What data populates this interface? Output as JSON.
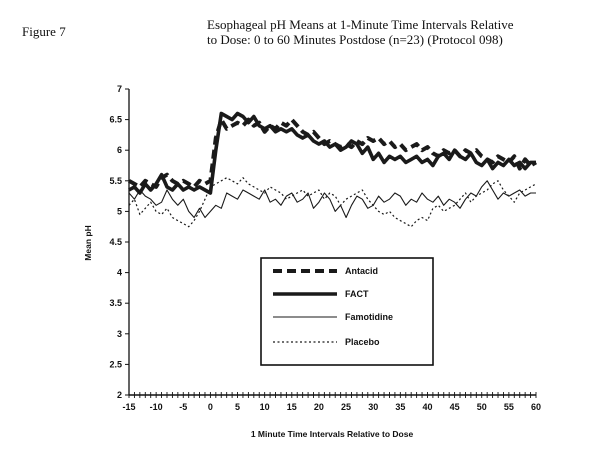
{
  "figure_label": "Figure 7",
  "title_line1": "Esophageal pH Means at 1-Minute Time Intervals Relative",
  "title_line2": "to Dose:  0 to 60 Minutes Postdose (n=23) (Protocol 098)",
  "chart_data": {
    "type": "line",
    "title": "Esophageal pH Means at 1-Minute Time Intervals Relative to Dose: 0 to 60 Minutes Postdose (n=23) (Protocol 098)",
    "xlabel": "1 Minute Time Intervals Relative to Dose",
    "ylabel": "Mean pH",
    "xlim": [
      -15,
      60
    ],
    "ylim": [
      2,
      7
    ],
    "xticks": [
      -15,
      -10,
      -5,
      0,
      5,
      10,
      15,
      20,
      25,
      30,
      35,
      40,
      45,
      50,
      55,
      60
    ],
    "xtick_labels": [
      "-15",
      "-10",
      "-5",
      "0",
      "5",
      "10",
      "15",
      "20",
      "25",
      "30",
      "35",
      "40",
      "45",
      "50",
      "55",
      "60"
    ],
    "yticks": [
      2,
      2.5,
      3,
      3.5,
      4,
      4.5,
      5,
      5.5,
      6,
      6.5,
      7
    ],
    "ytick_labels": [
      "2",
      "2.5",
      "3",
      "3.5",
      "4",
      "4.5",
      "5",
      "5.5",
      "6",
      "6.5",
      "7"
    ],
    "grid": false,
    "legend_position": "center-right",
    "series": [
      {
        "name": "Antacid",
        "style": "dashed-thick",
        "color": "#1a1a1a",
        "x": [
          -15,
          -14,
          -13,
          -12,
          -11,
          -10,
          -9,
          -8,
          -7,
          -6,
          -5,
          -4,
          -3,
          -2,
          -1,
          0,
          1,
          2,
          3,
          4,
          5,
          6,
          7,
          8,
          9,
          10,
          11,
          12,
          13,
          14,
          15,
          16,
          17,
          18,
          19,
          20,
          21,
          22,
          23,
          24,
          25,
          26,
          27,
          28,
          29,
          30,
          31,
          32,
          33,
          34,
          35,
          36,
          37,
          38,
          39,
          40,
          41,
          42,
          43,
          44,
          45,
          46,
          47,
          48,
          49,
          50,
          51,
          52,
          53,
          54,
          55,
          56,
          57,
          58,
          59,
          60
        ],
        "y": [
          5.5,
          5.45,
          5.4,
          5.5,
          5.45,
          5.4,
          5.55,
          5.6,
          5.5,
          5.45,
          5.5,
          5.45,
          5.4,
          5.5,
          5.45,
          5.5,
          6.2,
          6.5,
          6.35,
          6.4,
          6.45,
          6.4,
          6.5,
          6.4,
          6.45,
          6.3,
          6.4,
          6.35,
          6.45,
          6.4,
          6.5,
          6.4,
          6.3,
          6.25,
          6.3,
          6.2,
          6.1,
          6.15,
          6.1,
          6.05,
          6.1,
          6.05,
          6.15,
          6.1,
          6.2,
          6.15,
          6.2,
          6.1,
          6.15,
          6.05,
          6.1,
          6.0,
          6.05,
          6.1,
          6.0,
          6.05,
          5.95,
          5.9,
          6.0,
          5.95,
          6.0,
          5.9,
          6.0,
          5.95,
          6.0,
          5.9,
          5.85,
          5.8,
          5.9,
          5.85,
          5.8,
          5.9,
          5.7,
          5.85,
          5.75,
          5.8
        ]
      },
      {
        "name": "FACT",
        "style": "solid-thick",
        "color": "#1a1a1a",
        "x": [
          -15,
          -14,
          -13,
          -12,
          -11,
          -10,
          -9,
          -8,
          -7,
          -6,
          -5,
          -4,
          -3,
          -2,
          -1,
          0,
          1,
          2,
          3,
          4,
          5,
          6,
          7,
          8,
          9,
          10,
          11,
          12,
          13,
          14,
          15,
          16,
          17,
          18,
          19,
          20,
          21,
          22,
          23,
          24,
          25,
          26,
          27,
          28,
          29,
          30,
          31,
          32,
          33,
          34,
          35,
          36,
          37,
          38,
          39,
          40,
          41,
          42,
          43,
          44,
          45,
          46,
          47,
          48,
          49,
          50,
          51,
          52,
          53,
          54,
          55,
          56,
          57,
          58,
          59,
          60
        ],
        "y": [
          5.35,
          5.4,
          5.3,
          5.45,
          5.35,
          5.45,
          5.6,
          5.4,
          5.35,
          5.45,
          5.35,
          5.4,
          5.35,
          5.4,
          5.35,
          5.3,
          6.0,
          6.6,
          6.55,
          6.5,
          6.6,
          6.55,
          6.45,
          6.55,
          6.4,
          6.35,
          6.4,
          6.3,
          6.35,
          6.3,
          6.35,
          6.25,
          6.2,
          6.25,
          6.15,
          6.1,
          6.15,
          6.05,
          6.1,
          6.0,
          6.05,
          6.15,
          6.1,
          5.95,
          6.05,
          5.85,
          5.95,
          5.8,
          5.9,
          5.85,
          5.9,
          5.8,
          5.85,
          5.9,
          5.8,
          5.85,
          5.75,
          5.9,
          5.95,
          5.85,
          6.0,
          5.9,
          5.85,
          5.95,
          5.8,
          5.75,
          5.85,
          5.7,
          5.8,
          5.75,
          5.85,
          5.75,
          5.8,
          5.7,
          5.8,
          5.8
        ]
      },
      {
        "name": "Famotidine",
        "style": "solid-thin",
        "color": "#1a1a1a",
        "x": [
          -15,
          -14,
          -13,
          -12,
          -11,
          -10,
          -9,
          -8,
          -7,
          -6,
          -5,
          -4,
          -3,
          -2,
          -1,
          0,
          1,
          2,
          3,
          4,
          5,
          6,
          7,
          8,
          9,
          10,
          11,
          12,
          13,
          14,
          15,
          16,
          17,
          18,
          19,
          20,
          21,
          22,
          23,
          24,
          25,
          26,
          27,
          28,
          29,
          30,
          31,
          32,
          33,
          34,
          35,
          36,
          37,
          38,
          39,
          40,
          41,
          42,
          43,
          44,
          45,
          46,
          47,
          48,
          49,
          50,
          51,
          52,
          53,
          54,
          55,
          56,
          57,
          58,
          59,
          60
        ],
        "y": [
          5.3,
          5.2,
          5.35,
          5.25,
          5.2,
          5.1,
          5.15,
          5.35,
          5.2,
          5.1,
          5.2,
          5.0,
          4.9,
          5.05,
          4.9,
          5.0,
          5.1,
          5.05,
          5.3,
          5.25,
          5.2,
          5.35,
          5.3,
          5.25,
          5.2,
          5.35,
          5.15,
          5.2,
          5.1,
          5.25,
          5.3,
          5.15,
          5.2,
          5.3,
          5.05,
          5.15,
          5.3,
          5.2,
          5.0,
          5.1,
          4.9,
          5.1,
          5.25,
          5.2,
          5.05,
          5.1,
          5.25,
          5.15,
          5.2,
          5.3,
          5.25,
          5.1,
          5.2,
          5.15,
          5.3,
          5.2,
          5.15,
          5.25,
          5.1,
          5.2,
          5.15,
          5.05,
          5.2,
          5.3,
          5.25,
          5.4,
          5.5,
          5.35,
          5.2,
          5.3,
          5.25,
          5.3,
          5.35,
          5.25,
          5.3,
          5.3
        ]
      },
      {
        "name": "Placebo",
        "style": "dotted",
        "color": "#1a1a1a",
        "x": [
          -15,
          -14,
          -13,
          -12,
          -11,
          -10,
          -9,
          -8,
          -7,
          -6,
          -5,
          -4,
          -3,
          -2,
          -1,
          0,
          1,
          2,
          3,
          4,
          5,
          6,
          7,
          8,
          9,
          10,
          11,
          12,
          13,
          14,
          15,
          16,
          17,
          18,
          19,
          20,
          21,
          22,
          23,
          24,
          25,
          26,
          27,
          28,
          29,
          30,
          31,
          32,
          33,
          34,
          35,
          36,
          37,
          38,
          39,
          40,
          41,
          42,
          43,
          44,
          45,
          46,
          47,
          48,
          49,
          50,
          51,
          52,
          53,
          54,
          55,
          56,
          57,
          58,
          59,
          60
        ],
        "y": [
          5.1,
          5.2,
          4.95,
          5.05,
          5.15,
          5.0,
          4.95,
          5.05,
          4.9,
          4.85,
          4.8,
          4.75,
          4.85,
          5.0,
          5.2,
          5.4,
          5.45,
          5.5,
          5.55,
          5.5,
          5.45,
          5.55,
          5.45,
          5.4,
          5.35,
          5.3,
          5.4,
          5.35,
          5.3,
          5.2,
          5.25,
          5.3,
          5.35,
          5.25,
          5.3,
          5.35,
          5.2,
          5.3,
          5.25,
          5.1,
          5.2,
          5.25,
          5.3,
          5.35,
          5.2,
          5.1,
          5.0,
          4.95,
          5.0,
          4.9,
          4.85,
          4.8,
          4.75,
          4.85,
          4.9,
          4.85,
          5.05,
          5.1,
          5.0,
          5.05,
          5.1,
          5.2,
          5.3,
          5.15,
          5.25,
          5.3,
          5.35,
          5.45,
          5.5,
          5.35,
          5.25,
          5.15,
          5.3,
          5.35,
          5.4,
          5.45
        ]
      }
    ]
  }
}
